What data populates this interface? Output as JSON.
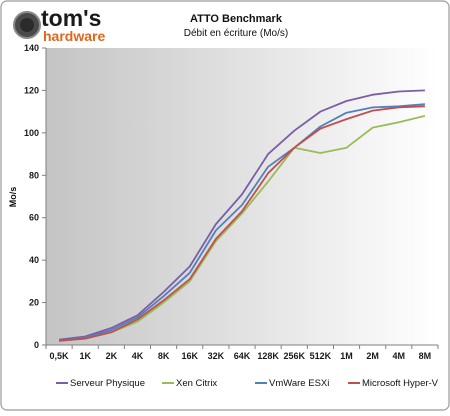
{
  "logo": {
    "line1": "tom's",
    "line2": "hardware"
  },
  "colors": {
    "background_light": "#ffffff",
    "background_dark": "#c4c4c4",
    "frame_border": "#9a9a9a",
    "logo_accent": "#e2651c"
  },
  "chart_data": {
    "type": "line",
    "title": "ATTO Benchmark",
    "subtitle": "Débit en écriture (Mo/s)",
    "xlabel": "",
    "ylabel": "Mo/s",
    "ylim": [
      0,
      140
    ],
    "yticks": [
      0,
      20,
      40,
      60,
      80,
      100,
      120,
      140
    ],
    "grid": false,
    "legend_position": "bottom",
    "categories": [
      "0,5K",
      "1K",
      "2K",
      "4K",
      "8K",
      "16K",
      "32K",
      "64K",
      "128K",
      "256K",
      "512K",
      "1M",
      "2M",
      "4M",
      "8M"
    ],
    "series": [
      {
        "name": "Serveur Physique",
        "color": "#7b5ea7",
        "values": [
          2.5,
          4,
          8,
          14,
          25,
          37,
          57,
          71,
          90,
          101,
          110,
          115,
          118,
          119.5,
          120
        ]
      },
      {
        "name": "Xen Citrix",
        "color": "#9bbb59",
        "values": [
          2,
          3,
          6,
          11,
          20,
          30,
          49,
          62,
          77,
          93,
          90.5,
          93,
          102.5,
          105,
          108
        ]
      },
      {
        "name": "VmWare ESXi",
        "color": "#4f81bd",
        "values": [
          2,
          3.5,
          7,
          13,
          23,
          34,
          54,
          66,
          84,
          93,
          103,
          109.5,
          112,
          112.5,
          113.5
        ]
      },
      {
        "name": "Microsoft Hyper-V",
        "color": "#c0504d",
        "values": [
          2,
          3,
          6,
          12,
          21,
          31,
          50,
          63,
          81,
          93,
          102,
          106.5,
          110.5,
          112,
          112.5
        ]
      }
    ]
  }
}
